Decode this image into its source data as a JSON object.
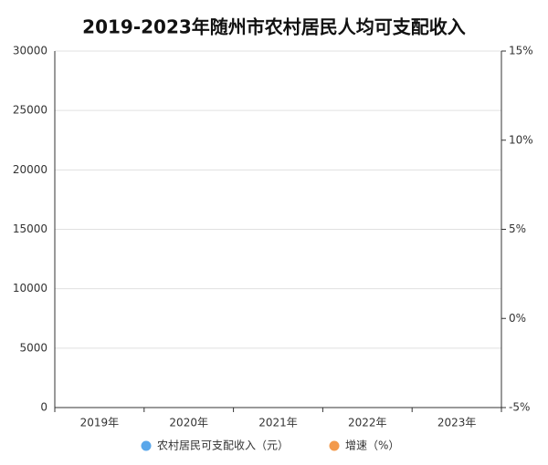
{
  "chart_data": {
    "type": "bar",
    "title": "2019-2023年随州市农村居民人均可支配收入",
    "categories": [
      "2019年",
      "2020年",
      "2021年",
      "2022年",
      "2023年"
    ],
    "series": [
      {
        "name": "农村居民可支配收入（元）",
        "color": "#5aa7ea",
        "type": "bar",
        "values": [
          null,
          null,
          null,
          null,
          null
        ]
      },
      {
        "name": "增速（%）",
        "color": "#f39a4c",
        "type": "line",
        "axis": "y2",
        "values": [
          null,
          null,
          null,
          null,
          null
        ]
      }
    ],
    "ylim": [
      0,
      30000
    ],
    "yticks": [
      0,
      5000,
      10000,
      15000,
      20000,
      25000,
      30000
    ],
    "y2lim": [
      -5,
      15
    ],
    "y2ticks": [
      {
        "value": -5,
        "label": "-5%"
      },
      {
        "value": 0,
        "label": "0%"
      },
      {
        "value": 5,
        "label": "5%"
      },
      {
        "value": 10,
        "label": "10%"
      },
      {
        "value": 15,
        "label": "15%"
      }
    ],
    "grid": true,
    "legend": "bottom"
  }
}
